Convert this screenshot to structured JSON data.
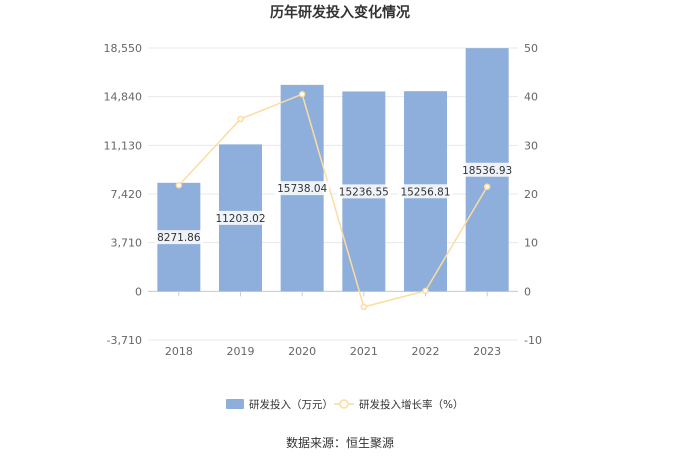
{
  "colors": {
    "bar": "#8eaedb",
    "line": "#fcdca0",
    "marker_fill": "#ffffff",
    "grid": "#e8e8e8",
    "axis_text": "#666666",
    "label_bg": "#ffffff",
    "label_text": "#333333"
  },
  "chart_data": {
    "type": "bar",
    "title": "历年研发投入变化情况",
    "categories": [
      "2018",
      "2019",
      "2020",
      "2021",
      "2022",
      "2023"
    ],
    "series": [
      {
        "name": "研发投入（万元）",
        "type": "bar",
        "axis": "left",
        "values": [
          8271.86,
          11203.02,
          15738.04,
          15236.55,
          15256.81,
          18536.93
        ],
        "labels": [
          "8271.86",
          "11203.02",
          "15738.04",
          "15236.55",
          "15256.81",
          "18536.93"
        ]
      },
      {
        "name": "研发投入增长率（%）",
        "type": "line",
        "axis": "right",
        "values": [
          21.8,
          35.4,
          40.5,
          -3.2,
          0.1,
          21.5
        ]
      }
    ],
    "y_left": {
      "ticks": [
        "18,550",
        "14,840",
        "11,130",
        "7,420",
        "3,710",
        "0",
        "-3,710"
      ],
      "lim": [
        -3710,
        18550
      ]
    },
    "y_right": {
      "ticks": [
        "50",
        "40",
        "30",
        "20",
        "10",
        "0",
        "-10"
      ],
      "lim": [
        -10,
        50
      ]
    },
    "grid": true,
    "legend_position": "bottom"
  },
  "footer": {
    "source": "数据来源：恒生聚源"
  }
}
